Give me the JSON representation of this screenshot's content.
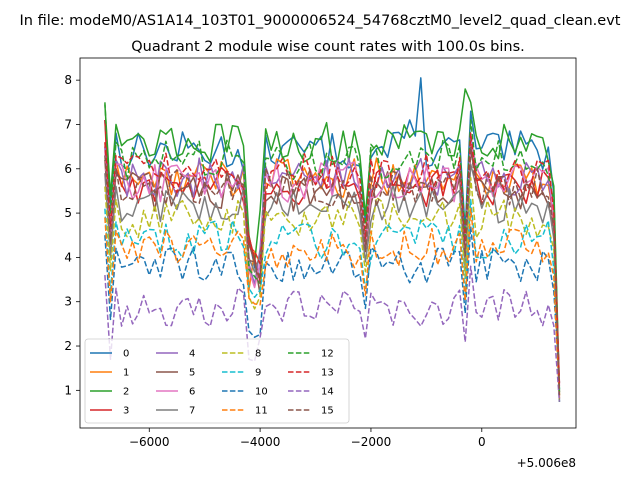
{
  "figure": {
    "suptitle": "In file: modeM0/AS1A14_103T01_9000006524_54768cztM0_level2_quad_clean.evt",
    "title": "Quadrant 2 module wise count rates with 100.0s bins."
  },
  "chart_data": {
    "type": "line",
    "title": "Quadrant 2 module wise count rates with 100.0s bins.",
    "xlabel": "",
    "ylabel": "",
    "x_offset_label": "+5.006e8",
    "x_offset": 500600000,
    "xlim": [
      -7250,
      1700
    ],
    "ylim": [
      0.15,
      8.5
    ],
    "x_ticks": [
      -6000,
      -4000,
      -2000,
      0
    ],
    "x_tick_labels": [
      "−6000",
      "−4000",
      "−2000",
      "0"
    ],
    "y_ticks": [
      1,
      2,
      3,
      4,
      5,
      6,
      7,
      8
    ],
    "y_tick_labels": [
      "1",
      "2",
      "3",
      "4",
      "5",
      "6",
      "7",
      "8"
    ],
    "grid": false,
    "legend_placement": "lower-left",
    "legend_columns": 4,
    "x": [
      -6800,
      -6700,
      -6600,
      -6500,
      -6400,
      -6300,
      -6200,
      -6100,
      -6000,
      -5900,
      -5800,
      -5700,
      -5600,
      -5500,
      -5400,
      -5300,
      -5200,
      -5100,
      -5000,
      -4900,
      -4800,
      -4700,
      -4600,
      -4500,
      -4400,
      -4300,
      -4200,
      -4100,
      -4000,
      -3900,
      -3800,
      -3700,
      -3600,
      -3500,
      -3400,
      -3300,
      -3200,
      -3100,
      -3000,
      -2900,
      -2800,
      -2700,
      -2600,
      -2500,
      -2400,
      -2300,
      -2200,
      -2100,
      -2000,
      -1900,
      -1800,
      -1700,
      -1600,
      -1500,
      -1400,
      -1300,
      -1200,
      -1100,
      -1000,
      -900,
      -800,
      -700,
      -600,
      -500,
      -400,
      -300,
      -200,
      -100,
      0,
      100,
      200,
      300,
      400,
      500,
      600,
      700,
      800,
      900,
      1000,
      1100,
      1200,
      1300,
      1400
    ],
    "series": [
      {
        "name": "0",
        "color": "#1f77b4",
        "dash": false,
        "base": 6.4,
        "special": {
          "-1100": 8.05,
          "-1300": 7.1
        }
      },
      {
        "name": "1",
        "color": "#ff7f0e",
        "dash": false,
        "base": 5.8
      },
      {
        "name": "2",
        "color": "#2ca02c",
        "dash": false,
        "base": 6.6,
        "special": {
          "-6800": 7.45,
          "-300": 7.8
        }
      },
      {
        "name": "3",
        "color": "#d62728",
        "dash": false,
        "base": 5.6,
        "special": {
          "-6800": 7.1
        }
      },
      {
        "name": "4",
        "color": "#9467bd",
        "dash": false,
        "base": 5.8
      },
      {
        "name": "5",
        "color": "#8c564b",
        "dash": false,
        "base": 5.5
      },
      {
        "name": "6",
        "color": "#e377c2",
        "dash": false,
        "base": 5.7
      },
      {
        "name": "7",
        "color": "#7f7f7f",
        "dash": false,
        "base": 5.2
      },
      {
        "name": "8",
        "color": "#bcbd22",
        "dash": true,
        "base": 4.9
      },
      {
        "name": "9",
        "color": "#17becf",
        "dash": true,
        "base": 4.4
      },
      {
        "name": "10",
        "color": "#1f77b4",
        "dash": true,
        "base": 3.8
      },
      {
        "name": "11",
        "color": "#ff7f0e",
        "dash": true,
        "base": 4.2
      },
      {
        "name": "12",
        "color": "#2ca02c",
        "dash": true,
        "base": 6.2,
        "special": {
          "-6800": 7.5
        }
      },
      {
        "name": "13",
        "color": "#d62728",
        "dash": true,
        "base": 5.9
      },
      {
        "name": "14",
        "color": "#9467bd",
        "dash": true,
        "base": 2.9
      },
      {
        "name": "15",
        "color": "#8c564b",
        "dash": true,
        "base": 5.6
      }
    ]
  }
}
